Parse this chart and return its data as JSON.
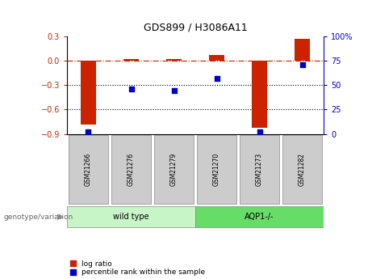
{
  "title": "GDS899 / H3086A11",
  "categories": [
    "GSM21266",
    "GSM21276",
    "GSM21279",
    "GSM21270",
    "GSM21273",
    "GSM21282"
  ],
  "log_ratio": [
    -0.78,
    0.02,
    0.02,
    0.07,
    -0.82,
    0.27
  ],
  "percentile_rank": [
    2,
    46,
    44,
    57,
    2,
    71
  ],
  "group_label": "genotype/variation",
  "left_group_label": "wild type",
  "right_group_label": "AQP1-/-",
  "left_group_color": "#c8f5c8",
  "right_group_color": "#66dd66",
  "bar_color": "#cc2200",
  "scatter_color": "#0000cc",
  "ylim_left": [
    -0.9,
    0.3
  ],
  "ylim_right": [
    0,
    100
  ],
  "yticks_left": [
    -0.9,
    -0.6,
    -0.3,
    0.0,
    0.3
  ],
  "yticks_right": [
    0,
    25,
    50,
    75,
    100
  ],
  "hline_dotted": [
    -0.3,
    -0.6
  ],
  "background_color": "#ffffff",
  "sample_box_color": "#cccccc",
  "legend_log_ratio": "log ratio",
  "legend_pct": "percentile rank within the sample"
}
